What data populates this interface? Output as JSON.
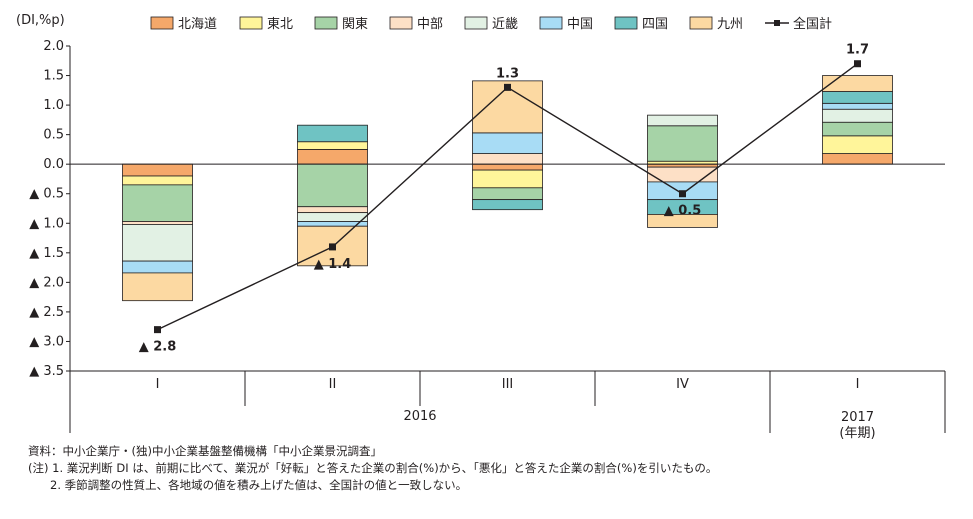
{
  "chart_data": {
    "type": "bar+line",
    "title": "",
    "ylabel": "(DI,%p)",
    "ylim": [
      -3.5,
      2.0
    ],
    "yticks": [
      {
        "v": 2.0,
        "label": "2.0"
      },
      {
        "v": 1.5,
        "label": "1.5"
      },
      {
        "v": 1.0,
        "label": "1.0"
      },
      {
        "v": 0.5,
        "label": "0.5"
      },
      {
        "v": 0.0,
        "label": "0.0"
      },
      {
        "v": -0.5,
        "label": "▲ 0.5"
      },
      {
        "v": -1.0,
        "label": "▲ 1.0"
      },
      {
        "v": -1.5,
        "label": "▲ 1.5"
      },
      {
        "v": -2.0,
        "label": "▲ 2.0"
      },
      {
        "v": -2.5,
        "label": "▲ 2.5"
      },
      {
        "v": -3.0,
        "label": "▲ 3.0"
      },
      {
        "v": -3.5,
        "label": "▲ 3.5"
      }
    ],
    "categories": [
      "I",
      "II",
      "III",
      "IV",
      "I"
    ],
    "year_groups": [
      {
        "label": "2016",
        "span": 4
      },
      {
        "label": "2017",
        "span": 1
      }
    ],
    "period_unit": "(年期)",
    "legend_position": "top",
    "series": [
      {
        "name": "北海道",
        "color": "#f5a86a",
        "values": [
          -0.2,
          0.25,
          -0.1,
          -0.05,
          0.18
        ]
      },
      {
        "name": "東北",
        "color": "#fff59a",
        "values": [
          -0.15,
          0.13,
          -0.3,
          0.05,
          0.3
        ]
      },
      {
        "name": "関東",
        "color": "#a6d3a7",
        "values": [
          -0.62,
          -0.72,
          -0.2,
          0.6,
          0.23
        ]
      },
      {
        "name": "中部",
        "color": "#fde0c6",
        "values": [
          -0.05,
          -0.1,
          0.18,
          -0.25,
          0.0
        ]
      },
      {
        "name": "近畿",
        "color": "#e2f1e4",
        "values": [
          -0.62,
          -0.15,
          0.0,
          0.18,
          0.22
        ]
      },
      {
        "name": "中国",
        "color": "#a8dcf5",
        "values": [
          -0.2,
          -0.08,
          0.35,
          -0.3,
          0.1
        ]
      },
      {
        "name": "四国",
        "color": "#6fc3c3",
        "values": [
          0.0,
          0.28,
          -0.17,
          -0.25,
          0.2
        ]
      },
      {
        "name": "九州",
        "color": "#fcd9a2",
        "values": [
          -0.47,
          -0.67,
          0.88,
          -0.22,
          0.27
        ]
      },
      {
        "name": "全国計",
        "type": "line",
        "color": "#231f20",
        "values": [
          -2.8,
          -1.4,
          1.3,
          -0.5,
          1.7
        ]
      }
    ],
    "point_labels": [
      {
        "index": 0,
        "text": "▲ 2.8",
        "position": "below"
      },
      {
        "index": 1,
        "text": "▲ 1.4",
        "position": "below"
      },
      {
        "index": 2,
        "text": "1.3",
        "position": "above"
      },
      {
        "index": 3,
        "text": "▲ 0.5",
        "position": "below"
      },
      {
        "index": 4,
        "text": "1.7",
        "position": "above"
      }
    ],
    "grid": false
  },
  "notes": {
    "source": "資料：中小企業庁・(独)中小企業基盤整備機構「中小企業景況調査」",
    "note1": "(注) 1. 業況判断 DI は、前期に比べて、業況が「好転」と答えた企業の割合(%)から、「悪化」と答えた企業の割合(%)を引いたもの。",
    "note2": "2. 季節調整の性質上、各地域の値を積み上げた値は、全国計の値と一致しない。"
  }
}
